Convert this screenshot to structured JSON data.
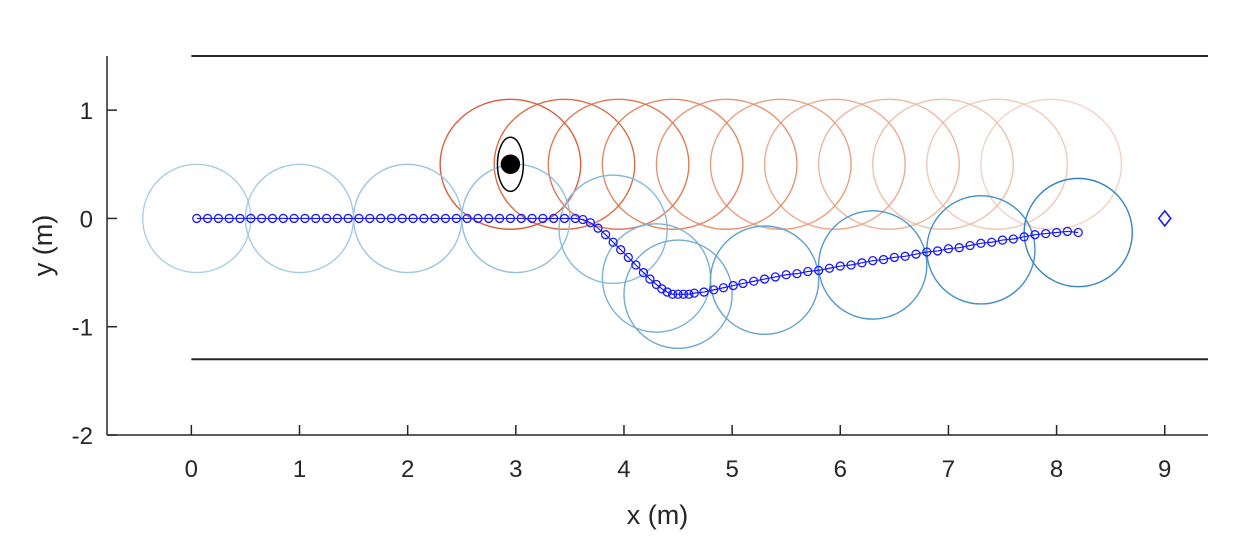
{
  "chart_data": {
    "type": "scatter",
    "xlabel": "x (m)",
    "ylabel": "y (m)",
    "xlim": [
      -0.78,
      9.4
    ],
    "ylim": [
      -2,
      1.5
    ],
    "xticks": [
      0,
      1,
      2,
      3,
      4,
      5,
      6,
      7,
      8,
      9
    ],
    "yticks": [
      -2,
      -1,
      0,
      1
    ],
    "xtick_labels": [
      "0",
      "1",
      "2",
      "3",
      "4",
      "5",
      "6",
      "7",
      "8",
      "9"
    ],
    "ytick_labels": [
      "-2",
      "-1",
      "0",
      "1"
    ],
    "grid": false,
    "boundaries": [
      {
        "y": 1.5,
        "x_range": [
          0,
          9.4
        ],
        "color": "#262626"
      },
      {
        "y": -1.3,
        "x_range": [
          0,
          9.4
        ],
        "color": "#262626"
      }
    ],
    "ego_trajectory": {
      "marker": "circle",
      "color": "#1a1aff",
      "x": [
        0.05,
        0.15,
        0.25,
        0.35,
        0.45,
        0.55,
        0.65,
        0.75,
        0.85,
        0.95,
        1.05,
        1.15,
        1.25,
        1.35,
        1.45,
        1.55,
        1.65,
        1.75,
        1.85,
        1.95,
        2.05,
        2.15,
        2.25,
        2.35,
        2.45,
        2.55,
        2.65,
        2.75,
        2.85,
        2.95,
        3.05,
        3.15,
        3.25,
        3.35,
        3.45,
        3.55,
        3.62,
        3.69,
        3.76,
        3.83,
        3.9,
        3.97,
        4.04,
        4.11,
        4.18,
        4.24,
        4.3,
        4.35,
        4.4,
        4.45,
        4.5,
        4.55,
        4.6,
        4.65,
        4.74,
        4.83,
        4.92,
        5.01,
        5.1,
        5.2,
        5.3,
        5.4,
        5.5,
        5.6,
        5.7,
        5.8,
        5.9,
        6.0,
        6.1,
        6.2,
        6.3,
        6.4,
        6.5,
        6.6,
        6.7,
        6.8,
        6.9,
        7.0,
        7.1,
        7.2,
        7.3,
        7.4,
        7.5,
        7.6,
        7.7,
        7.8,
        7.9,
        8.0,
        8.1,
        8.2
      ],
      "y": [
        0,
        0,
        0,
        0,
        0,
        0,
        0,
        0,
        0,
        0,
        0,
        0,
        0,
        0,
        0,
        0,
        0,
        0,
        0,
        0,
        0,
        0,
        0,
        0,
        0,
        0,
        0,
        0,
        0,
        0,
        0,
        0,
        0,
        0,
        0,
        0,
        -0.01,
        -0.04,
        -0.09,
        -0.15,
        -0.22,
        -0.29,
        -0.36,
        -0.43,
        -0.5,
        -0.56,
        -0.61,
        -0.65,
        -0.68,
        -0.7,
        -0.7,
        -0.7,
        -0.7,
        -0.69,
        -0.68,
        -0.66,
        -0.64,
        -0.62,
        -0.6,
        -0.58,
        -0.56,
        -0.54,
        -0.52,
        -0.51,
        -0.49,
        -0.48,
        -0.46,
        -0.44,
        -0.43,
        -0.41,
        -0.39,
        -0.38,
        -0.36,
        -0.35,
        -0.33,
        -0.31,
        -0.3,
        -0.28,
        -0.27,
        -0.25,
        -0.23,
        -0.22,
        -0.2,
        -0.19,
        -0.17,
        -0.15,
        -0.14,
        -0.13,
        -0.12,
        -0.13
      ]
    },
    "ego_footprints": [
      {
        "x": 0.05,
        "y": 0.0,
        "r": 0.5,
        "color": "#a9cfe6"
      },
      {
        "x": 1.0,
        "y": 0.0,
        "r": 0.5,
        "color": "#a4cbe4"
      },
      {
        "x": 2.0,
        "y": 0.0,
        "r": 0.5,
        "color": "#9cc6e1"
      },
      {
        "x": 3.0,
        "y": 0.0,
        "r": 0.5,
        "color": "#93c0de"
      },
      {
        "x": 3.9,
        "y": -0.1,
        "r": 0.5,
        "color": "#88b9da"
      },
      {
        "x": 4.3,
        "y": -0.55,
        "r": 0.5,
        "color": "#7db2d6"
      },
      {
        "x": 4.5,
        "y": -0.7,
        "r": 0.5,
        "color": "#71aad2"
      },
      {
        "x": 5.3,
        "y": -0.57,
        "r": 0.5,
        "color": "#62a2cd"
      },
      {
        "x": 6.3,
        "y": -0.43,
        "r": 0.5,
        "color": "#5299c9"
      },
      {
        "x": 7.3,
        "y": -0.29,
        "r": 0.5,
        "color": "#4390c4"
      },
      {
        "x": 8.2,
        "y": -0.13,
        "r": 0.5,
        "color": "#3586bf"
      }
    ],
    "obstacle_predictions": [
      {
        "x": 2.95,
        "y": 0.5,
        "rx": 0.65,
        "ry": 0.6,
        "color": "#d95f3b"
      },
      {
        "x": 3.45,
        "y": 0.5,
        "rx": 0.65,
        "ry": 0.6,
        "color": "#dd6c46"
      },
      {
        "x": 3.95,
        "y": 0.5,
        "rx": 0.65,
        "ry": 0.6,
        "color": "#e07a55"
      },
      {
        "x": 4.45,
        "y": 0.5,
        "rx": 0.65,
        "ry": 0.6,
        "color": "#e38763"
      },
      {
        "x": 4.95,
        "y": 0.5,
        "rx": 0.65,
        "ry": 0.6,
        "color": "#e69472"
      },
      {
        "x": 5.45,
        "y": 0.5,
        "rx": 0.65,
        "ry": 0.6,
        "color": "#e9a081"
      },
      {
        "x": 5.95,
        "y": 0.5,
        "rx": 0.65,
        "ry": 0.6,
        "color": "#ebab90"
      },
      {
        "x": 6.45,
        "y": 0.5,
        "rx": 0.65,
        "ry": 0.6,
        "color": "#edb69e"
      },
      {
        "x": 6.95,
        "y": 0.5,
        "rx": 0.65,
        "ry": 0.6,
        "color": "#efc0ab"
      },
      {
        "x": 7.45,
        "y": 0.5,
        "rx": 0.65,
        "ry": 0.6,
        "color": "#f1c9b8"
      },
      {
        "x": 7.95,
        "y": 0.5,
        "rx": 0.65,
        "ry": 0.6,
        "color": "#f3d2c4"
      }
    ],
    "obstacle": {
      "x": 2.95,
      "y": 0.5,
      "rx": 0.12,
      "ry": 0.25,
      "marker_r": 0.09,
      "color": "#000000"
    },
    "goal": {
      "x": 9.0,
      "y": 0.0,
      "marker": "diamond",
      "color": "#1a1aff"
    }
  }
}
